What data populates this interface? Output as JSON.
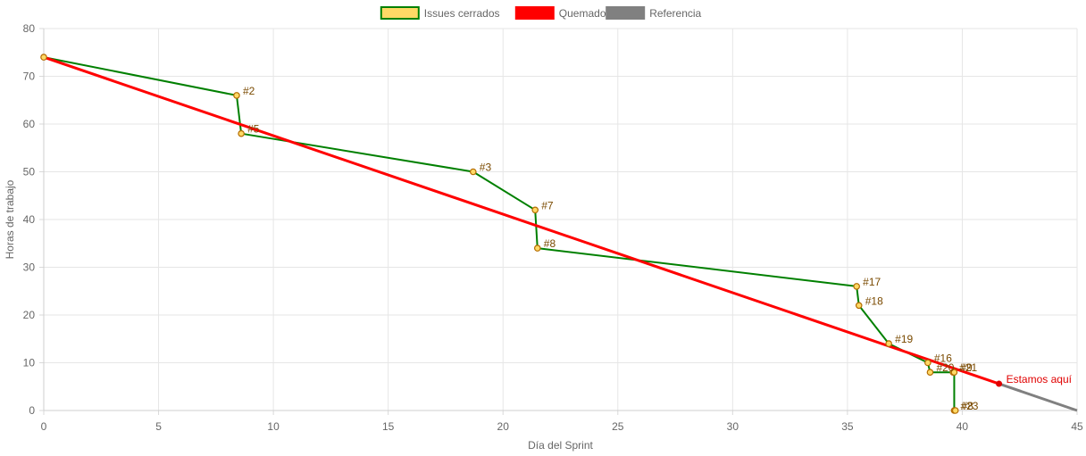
{
  "chart_data": {
    "type": "line",
    "xlabel": "Día del Sprint",
    "ylabel": "Horas de trabajo",
    "xlim": [
      0,
      45
    ],
    "ylim": [
      0,
      80
    ],
    "x_ticks": [
      0,
      5,
      10,
      15,
      20,
      25,
      30,
      35,
      40,
      45
    ],
    "y_ticks": [
      0,
      10,
      20,
      30,
      40,
      50,
      60,
      70,
      80
    ],
    "grid": true,
    "legend_position": "top-center",
    "legend": [
      "Issues cerrados",
      "Quemado",
      "Referencia"
    ],
    "series": [
      {
        "name": "Issues cerrados",
        "line_color": "#008000",
        "point_fill": "#ffd966",
        "point_stroke": "#b36b00",
        "points": [
          {
            "x": 0,
            "y": 74,
            "label": ""
          },
          {
            "x": 8.4,
            "y": 66,
            "label": "#2"
          },
          {
            "x": 8.6,
            "y": 58,
            "label": "#5"
          },
          {
            "x": 18.7,
            "y": 50,
            "label": "#3"
          },
          {
            "x": 21.4,
            "y": 42,
            "label": "#7"
          },
          {
            "x": 21.5,
            "y": 34,
            "label": "#8"
          },
          {
            "x": 35.4,
            "y": 26,
            "label": "#17"
          },
          {
            "x": 35.5,
            "y": 22,
            "label": "#18"
          },
          {
            "x": 36.8,
            "y": 14,
            "label": "#19"
          },
          {
            "x": 38.5,
            "y": 10,
            "label": "#16"
          },
          {
            "x": 38.6,
            "y": 8,
            "label": "#20"
          },
          {
            "x": 39.6,
            "y": 8,
            "label": "#21"
          },
          {
            "x": 39.65,
            "y": 8,
            "label": "#9"
          },
          {
            "x": 39.65,
            "y": 0,
            "label": "#23"
          },
          {
            "x": 39.7,
            "y": 0,
            "label": "#8"
          }
        ]
      },
      {
        "name": "Quemado",
        "line_color": "#ff0000",
        "points": [
          {
            "x": 0,
            "y": 74
          },
          {
            "x": 41.6,
            "y": 5.6
          }
        ]
      },
      {
        "name": "Referencia",
        "line_color": "#808080",
        "points": [
          {
            "x": 41.6,
            "y": 5.6
          },
          {
            "x": 45,
            "y": 0
          }
        ]
      }
    ],
    "annotation": {
      "text": "Estamos aquí",
      "x": 41.6,
      "y": 5.6,
      "color": "#e00000"
    }
  }
}
